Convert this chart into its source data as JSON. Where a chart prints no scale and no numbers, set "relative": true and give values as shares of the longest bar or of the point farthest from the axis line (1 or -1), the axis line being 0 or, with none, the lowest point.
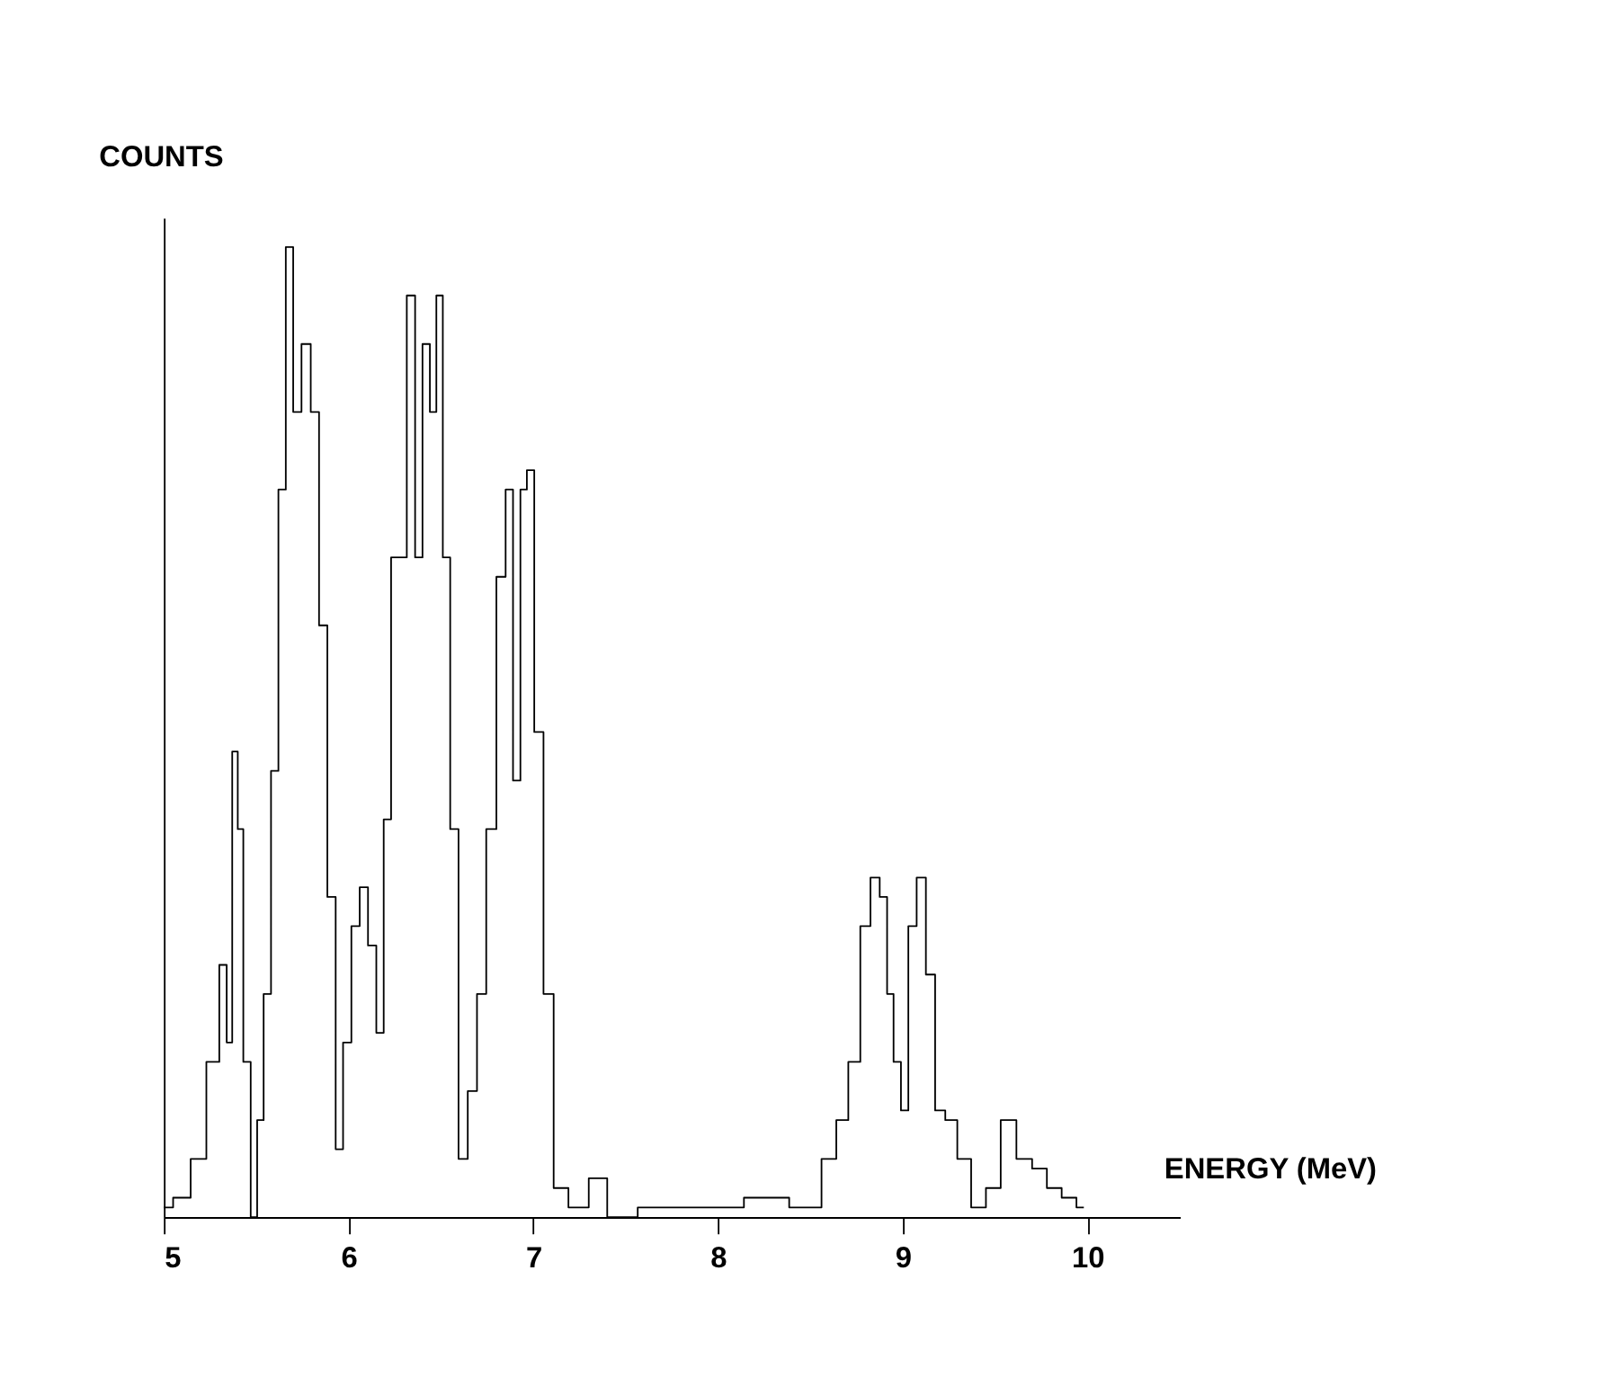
{
  "chart_data": {
    "type": "step",
    "xlabel": "ENERGY (MeV)",
    "ylabel": "COUNTS",
    "relative": true,
    "xlim": [
      5,
      10.5
    ],
    "xticks": [
      5,
      6,
      7,
      8,
      9,
      10
    ],
    "grid": false,
    "series": [
      {
        "color": "#000000",
        "x": [
          5.0,
          5.1,
          5.19,
          5.27,
          5.33,
          5.35,
          5.39,
          5.41,
          5.45,
          5.49,
          5.52,
          5.56,
          5.6,
          5.64,
          5.68,
          5.72,
          5.77,
          5.82,
          5.86,
          5.91,
          5.95,
          5.99,
          6.04,
          6.08,
          6.13,
          6.17,
          6.21,
          6.25,
          6.29,
          6.34,
          6.38,
          6.42,
          6.46,
          6.49,
          6.53,
          6.57,
          6.62,
          6.67,
          6.72,
          6.77,
          6.83,
          6.87,
          6.91,
          6.95,
          6.98,
          7.03,
          7.08,
          7.14,
          7.24,
          7.36,
          7.44,
          7.69,
          8.02,
          8.26,
          8.51,
          8.61,
          8.67,
          8.74,
          8.8,
          8.85,
          8.9,
          8.93,
          8.97,
          9.01,
          9.05,
          9.1,
          9.15,
          9.2,
          9.26,
          9.33,
          9.41,
          9.49,
          9.57,
          9.66,
          9.74,
          9.82,
          9.9,
          9.98
        ],
        "values": [
          0.01,
          0.02,
          0.06,
          0.16,
          0.26,
          0.18,
          0.48,
          0.4,
          0.16,
          0.0,
          0.1,
          0.23,
          0.46,
          0.75,
          1.0,
          0.83,
          0.9,
          0.83,
          0.61,
          0.33,
          0.07,
          0.18,
          0.3,
          0.34,
          0.28,
          0.19,
          0.41,
          0.68,
          0.68,
          0.95,
          0.68,
          0.9,
          0.83,
          0.95,
          0.68,
          0.4,
          0.06,
          0.13,
          0.23,
          0.4,
          0.66,
          0.75,
          0.45,
          0.75,
          0.77,
          0.5,
          0.23,
          0.03,
          0.01,
          0.04,
          0.0,
          0.01,
          0.01,
          0.02,
          0.01,
          0.06,
          0.1,
          0.16,
          0.3,
          0.35,
          0.33,
          0.23,
          0.16,
          0.11,
          0.3,
          0.35,
          0.25,
          0.11,
          0.1,
          0.06,
          0.01,
          0.03,
          0.1,
          0.06,
          0.05,
          0.03,
          0.02,
          0.01
        ]
      }
    ]
  }
}
